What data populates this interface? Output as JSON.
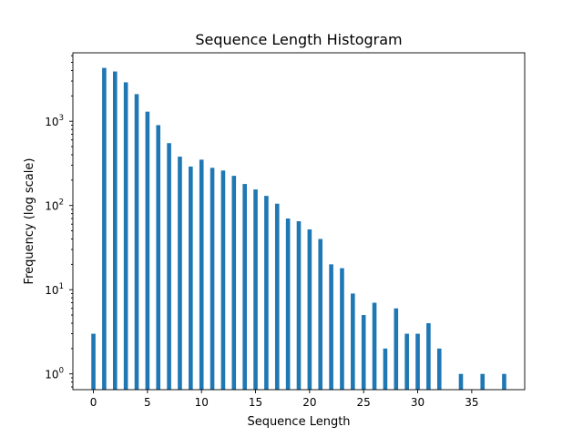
{
  "chart_data": {
    "type": "bar",
    "title": "Sequence Length Histogram",
    "xlabel": "Sequence Length",
    "ylabel": "Frequency (log scale)",
    "yscale": "log",
    "xlim": [
      -1.9,
      39.9
    ],
    "ylim": [
      0.65,
      6500
    ],
    "grid": false,
    "bar_color": "#1f77b4",
    "x_ticks": [
      0,
      5,
      10,
      15,
      20,
      25,
      30,
      35
    ],
    "x_tick_labels": [
      "0",
      "5",
      "10",
      "15",
      "20",
      "25",
      "30",
      "35"
    ],
    "y_ticks": [
      {
        "value": 1,
        "base": "10",
        "exp": "0"
      },
      {
        "value": 10,
        "base": "10",
        "exp": "1"
      },
      {
        "value": 100,
        "base": "10",
        "exp": "2"
      },
      {
        "value": 1000,
        "base": "10",
        "exp": "3"
      }
    ],
    "x": [
      0,
      1,
      2,
      3,
      4,
      5,
      6,
      7,
      8,
      9,
      10,
      11,
      12,
      13,
      14,
      15,
      16,
      17,
      18,
      19,
      20,
      21,
      22,
      23,
      24,
      25,
      26,
      27,
      28,
      29,
      30,
      31,
      32,
      34,
      36,
      38
    ],
    "values": [
      3,
      4300,
      3900,
      2900,
      2100,
      1300,
      900,
      550,
      380,
      290,
      350,
      280,
      260,
      225,
      180,
      155,
      130,
      105,
      70,
      65,
      52,
      40,
      20,
      18,
      9,
      5,
      7,
      2,
      6,
      3,
      3,
      4,
      2,
      1,
      1,
      1
    ]
  }
}
